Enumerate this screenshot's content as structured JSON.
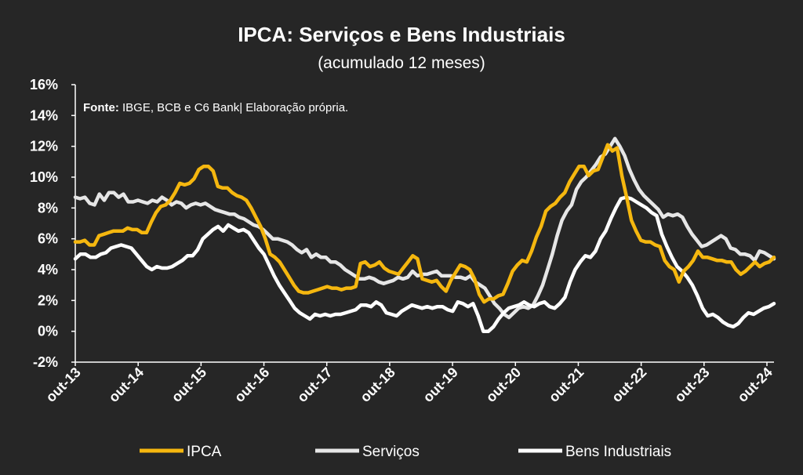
{
  "chart_data": {
    "type": "line",
    "title": "IPCA: Serviços e Bens Industriais",
    "subtitle": "(acumulado 12 meses)",
    "source_prefix": "Fonte:",
    "source_text": " IBGE, BCB e C6 Bank| Elaboração própria.",
    "ylim": [
      -2,
      16
    ],
    "yticks": [
      "16%",
      "14%",
      "12%",
      "10%",
      "8%",
      "6%",
      "4%",
      "2%",
      "0%",
      "-2%"
    ],
    "ytick_values": [
      16,
      14,
      12,
      10,
      8,
      6,
      4,
      2,
      0,
      -2
    ],
    "xticks": [
      "out-13",
      "out-14",
      "out-15",
      "out-16",
      "out-17",
      "out-18",
      "out-19",
      "out-20",
      "out-21",
      "out-22",
      "out-23",
      "out-24"
    ],
    "x_start": "out-13",
    "x_end": "nov-24",
    "legend_position": "bottom",
    "grid": "none",
    "colors": {
      "background": "#262626",
      "ipca": "#F5B70F",
      "servicos": "#E6E6E6",
      "bens": "#FFFFFF"
    },
    "series": [
      {
        "name": "IPCA",
        "values": [
          5.8,
          5.8,
          5.9,
          5.6,
          5.6,
          6.2,
          6.3,
          6.4,
          6.5,
          6.5,
          6.5,
          6.7,
          6.6,
          6.6,
          6.4,
          6.4,
          7.1,
          7.7,
          8.1,
          8.2,
          8.5,
          9.0,
          9.6,
          9.5,
          9.6,
          9.9,
          10.5,
          10.7,
          10.7,
          10.4,
          9.4,
          9.3,
          9.3,
          9.0,
          8.8,
          8.7,
          8.5,
          8.0,
          7.4,
          6.8,
          6.0,
          5.0,
          4.8,
          4.5,
          4.0,
          3.5,
          3.0,
          2.6,
          2.5,
          2.5,
          2.6,
          2.7,
          2.8,
          2.9,
          2.8,
          2.8,
          2.7,
          2.8,
          2.8,
          2.9,
          4.4,
          4.5,
          4.2,
          4.3,
          4.5,
          4.1,
          3.9,
          3.8,
          3.7,
          4.1,
          4.5,
          4.9,
          4.7,
          3.4,
          3.3,
          3.2,
          3.3,
          2.9,
          2.6,
          3.3,
          3.8,
          4.3,
          4.2,
          4.0,
          3.4,
          2.4,
          1.9,
          2.1,
          2.1,
          2.3,
          2.4,
          3.1,
          3.9,
          4.3,
          4.6,
          4.5,
          5.2,
          6.1,
          6.8,
          7.8,
          8.1,
          8.3,
          8.7,
          9.0,
          9.7,
          10.2,
          10.7,
          10.7,
          10.1,
          10.4,
          10.5,
          11.3,
          12.1,
          11.7,
          11.9,
          10.1,
          8.7,
          7.2,
          6.5,
          5.9,
          5.8,
          5.8,
          5.6,
          5.5,
          4.6,
          4.2,
          4.0,
          3.2,
          3.9,
          4.2,
          4.6,
          5.2,
          4.8,
          4.8,
          4.7,
          4.6,
          4.6,
          4.5,
          4.5,
          4.0,
          3.7,
          3.9,
          4.2,
          4.5,
          4.2,
          4.4,
          4.5,
          4.8
        ]
      },
      {
        "name": "Serviços",
        "values": [
          8.7,
          8.6,
          8.7,
          8.3,
          8.2,
          8.9,
          8.5,
          9.0,
          9.0,
          8.7,
          8.9,
          8.4,
          8.4,
          8.5,
          8.4,
          8.3,
          8.5,
          8.4,
          8.7,
          8.5,
          8.2,
          8.4,
          8.3,
          8.0,
          8.2,
          8.3,
          8.2,
          8.3,
          8.1,
          7.9,
          7.8,
          7.7,
          7.6,
          7.6,
          7.4,
          7.3,
          7.1,
          6.9,
          6.8,
          6.6,
          6.3,
          6.0,
          6.0,
          5.9,
          5.8,
          5.6,
          5.3,
          5.1,
          5.3,
          4.8,
          5.0,
          4.8,
          4.8,
          4.5,
          4.5,
          4.3,
          4.0,
          3.8,
          3.6,
          3.4,
          3.4,
          3.5,
          3.4,
          3.2,
          3.1,
          3.2,
          3.3,
          3.5,
          3.4,
          3.5,
          3.9,
          3.6,
          3.7,
          3.7,
          3.8,
          3.9,
          3.6,
          3.6,
          3.6,
          3.5,
          3.5,
          3.4,
          3.6,
          3.2,
          3.0,
          2.8,
          2.3,
          1.8,
          1.5,
          1.1,
          0.9,
          1.2,
          1.5,
          1.6,
          1.5,
          1.7,
          2.3,
          3.0,
          4.0,
          5.0,
          6.2,
          7.2,
          7.8,
          8.2,
          9.2,
          9.7,
          10.0,
          10.4,
          10.8,
          11.3,
          11.5,
          12.0,
          12.5,
          12.0,
          11.4,
          10.5,
          9.8,
          9.2,
          8.8,
          8.5,
          8.2,
          7.9,
          7.4,
          7.6,
          7.5,
          7.6,
          7.4,
          6.8,
          6.3,
          5.9,
          5.5,
          5.6,
          5.8,
          6.0,
          6.2,
          6.0,
          5.4,
          5.3,
          5.0,
          5.0,
          4.9,
          4.6,
          5.2,
          5.1,
          4.9,
          4.7
        ]
      },
      {
        "name": "Bens Industriais",
        "values": [
          4.7,
          5.0,
          5.0,
          4.8,
          4.8,
          5.0,
          5.1,
          5.4,
          5.5,
          5.6,
          5.5,
          5.4,
          5.0,
          4.6,
          4.2,
          4.0,
          4.2,
          4.1,
          4.1,
          4.2,
          4.4,
          4.6,
          4.9,
          4.9,
          5.3,
          6.0,
          6.3,
          6.6,
          6.8,
          6.5,
          6.9,
          6.7,
          6.5,
          6.6,
          6.4,
          5.9,
          5.4,
          5.0,
          4.3,
          3.6,
          3.0,
          2.5,
          2.0,
          1.5,
          1.2,
          1.0,
          0.8,
          1.1,
          1.0,
          1.1,
          1.0,
          1.1,
          1.1,
          1.2,
          1.3,
          1.4,
          1.7,
          1.7,
          1.6,
          1.9,
          1.7,
          1.2,
          1.1,
          1.0,
          1.3,
          1.5,
          1.7,
          1.6,
          1.5,
          1.6,
          1.5,
          1.6,
          1.6,
          1.4,
          1.3,
          1.9,
          1.8,
          1.6,
          1.8,
          1.0,
          0.0,
          0.0,
          0.3,
          0.8,
          1.2,
          1.5,
          1.6,
          1.7,
          1.9,
          1.7,
          1.6,
          1.8,
          1.9,
          1.6,
          1.5,
          1.8,
          2.2,
          3.2,
          4.0,
          4.5,
          4.9,
          4.8,
          5.2,
          6.0,
          6.5,
          7.3,
          8.0,
          8.6,
          8.7,
          8.6,
          8.4,
          8.2,
          8.0,
          7.7,
          7.5,
          6.3,
          5.5,
          4.8,
          4.2,
          3.9,
          3.5,
          3.0,
          2.3,
          1.5,
          1.0,
          1.1,
          0.9,
          0.6,
          0.4,
          0.3,
          0.5,
          0.9,
          1.2,
          1.1,
          1.3,
          1.5,
          1.6,
          1.8
        ]
      }
    ]
  }
}
